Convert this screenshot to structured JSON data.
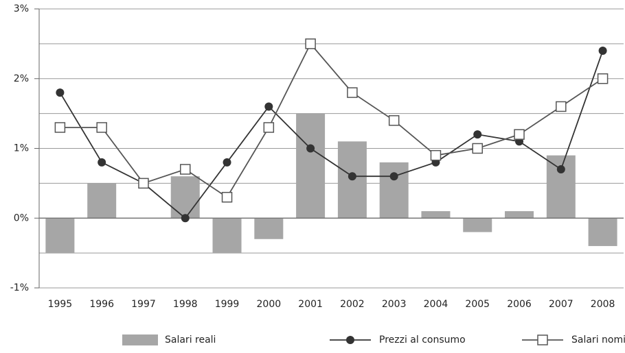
{
  "chart_data": {
    "type": "bar",
    "categories": [
      "1995",
      "1996",
      "1997",
      "1998",
      "1999",
      "2000",
      "2001",
      "2002",
      "2003",
      "2004",
      "2005",
      "2006",
      "2007",
      "2008"
    ],
    "series": [
      {
        "name": "Salari reali",
        "type": "bar",
        "color": "#a6a6a6",
        "values": [
          -0.5,
          0.5,
          0.0,
          0.6,
          -0.5,
          -0.3,
          1.5,
          1.1,
          0.8,
          0.1,
          -0.2,
          0.1,
          0.9,
          -0.4
        ]
      },
      {
        "name": "Prezzi al consumo",
        "type": "line",
        "marker": "circle",
        "color": "#333333",
        "values": [
          1.8,
          0.8,
          0.5,
          0.0,
          0.8,
          1.6,
          1.0,
          0.6,
          0.6,
          0.8,
          1.2,
          1.1,
          0.7,
          2.4
        ]
      },
      {
        "name": "Salari nominali",
        "type": "line",
        "marker": "square",
        "color": "#555555",
        "values": [
          1.3,
          1.3,
          0.5,
          0.7,
          0.3,
          1.3,
          2.5,
          1.8,
          1.4,
          0.9,
          1.0,
          1.2,
          1.6,
          2.0
        ]
      }
    ],
    "ylim": [
      -1,
      3
    ],
    "yticks": [
      {
        "value": -1,
        "label": "-1%"
      },
      {
        "value": 0,
        "label": "0%"
      },
      {
        "value": 1,
        "label": "1%"
      },
      {
        "value": 2,
        "label": "2%"
      },
      {
        "value": 3,
        "label": "3%"
      }
    ],
    "minor_yticks": [
      -0.5,
      0.5,
      1.5,
      2.5
    ],
    "grid": true,
    "legend": "bottom"
  }
}
